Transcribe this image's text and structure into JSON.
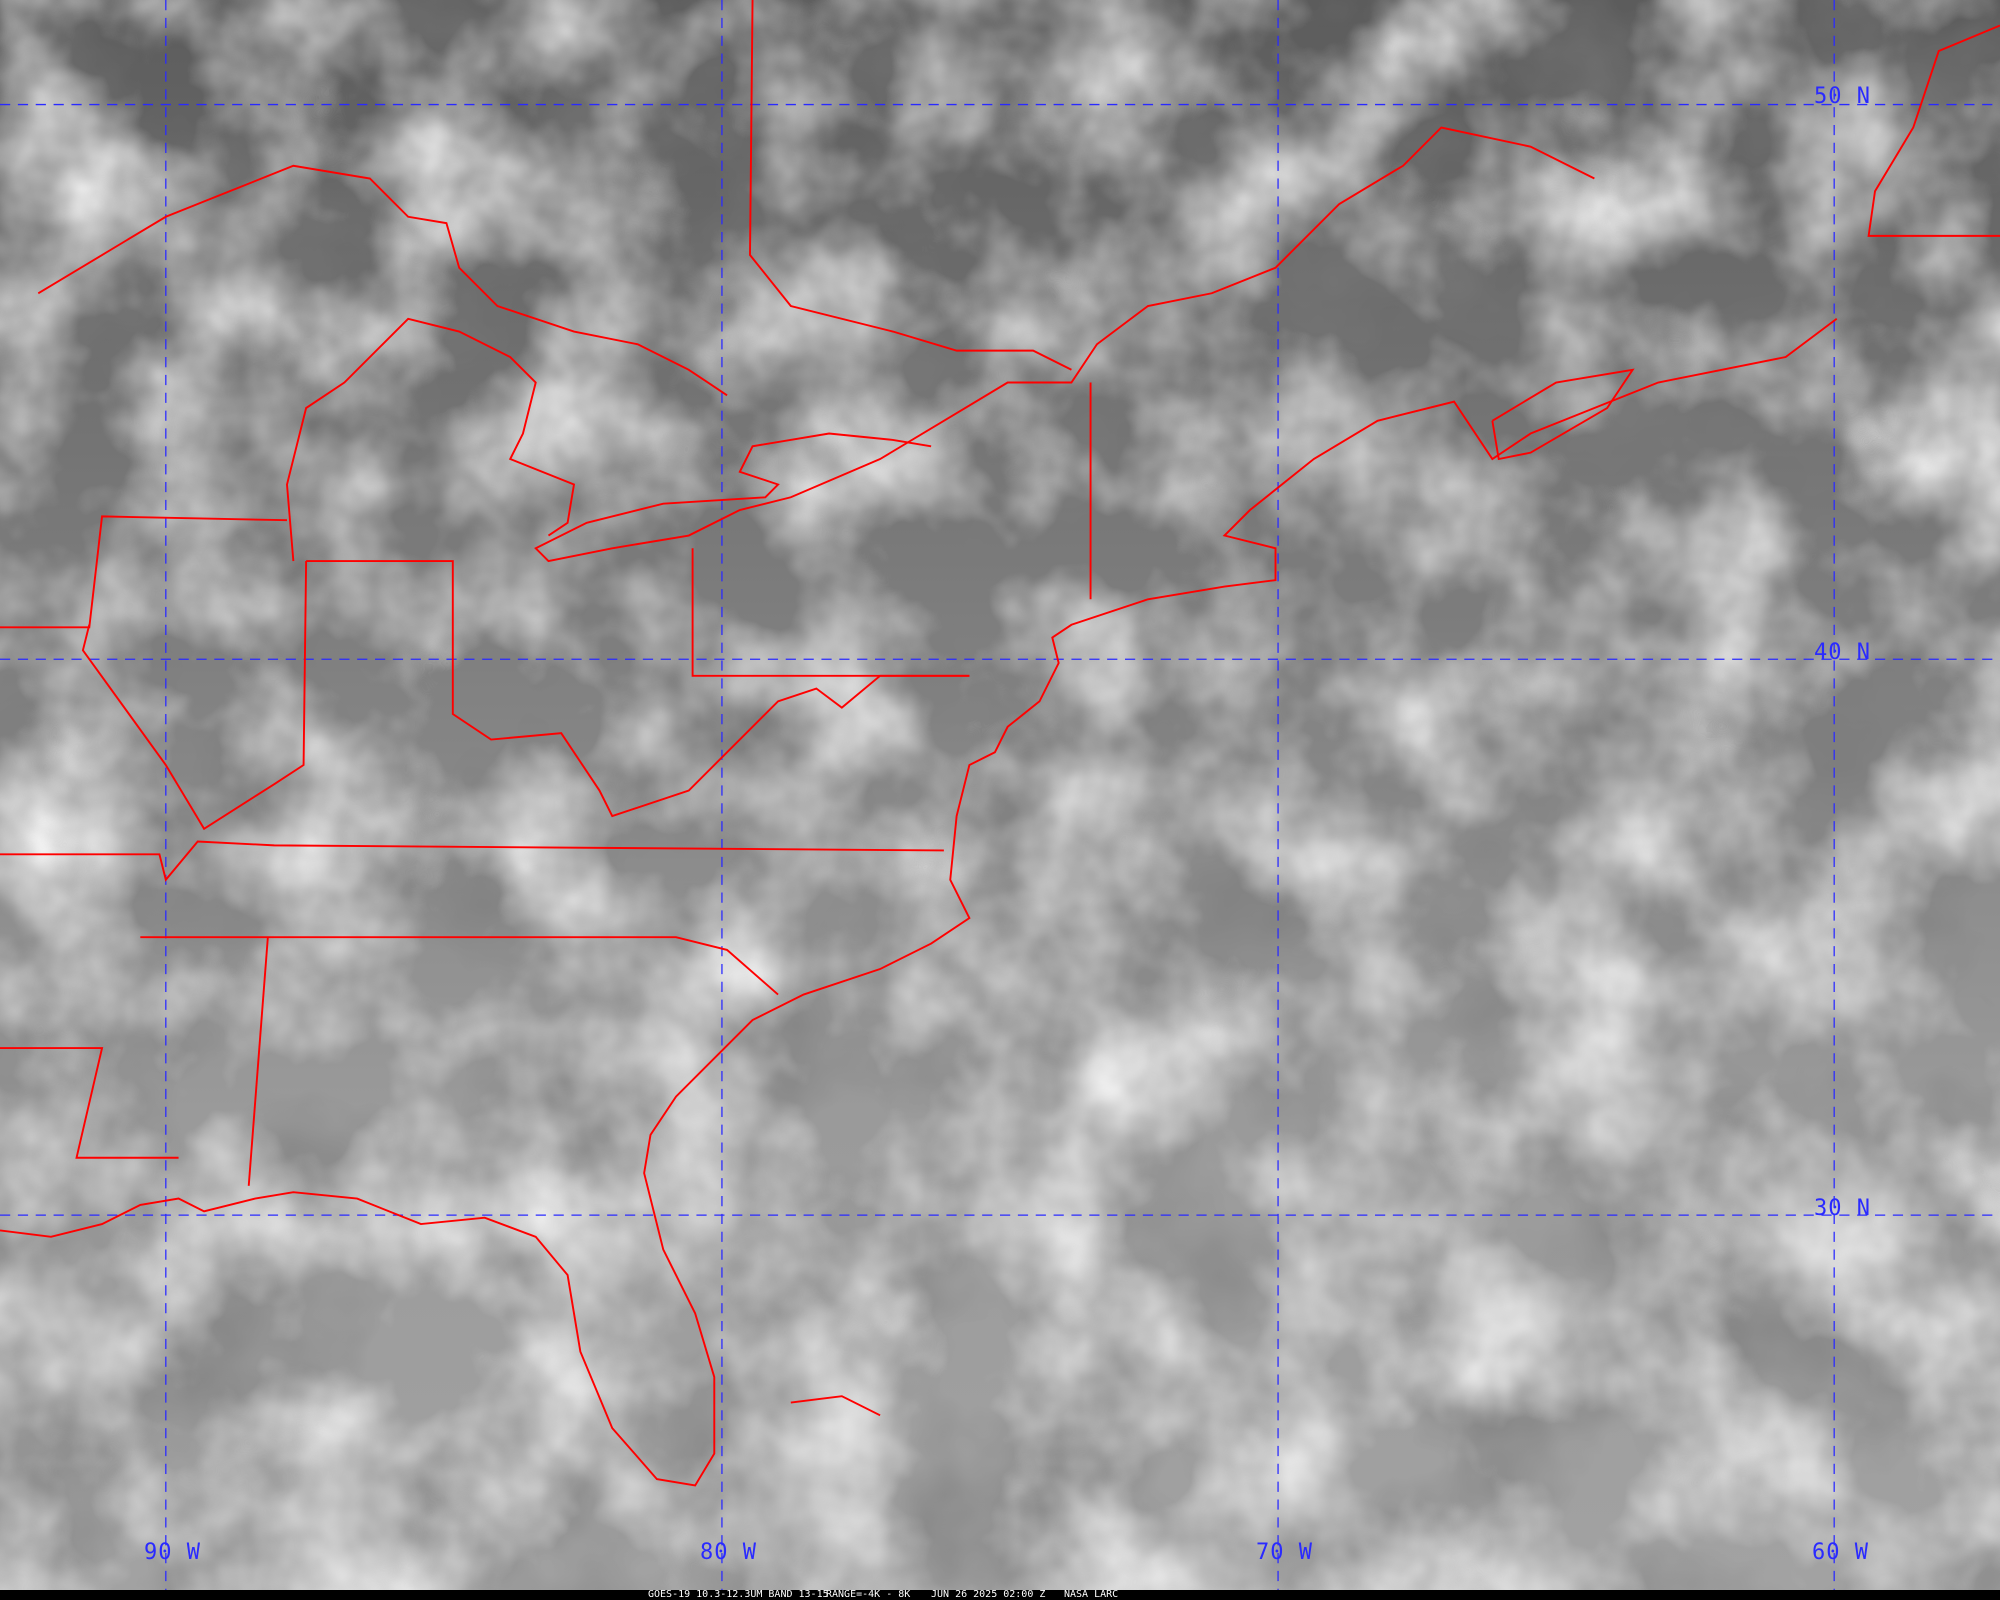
{
  "map": {
    "lat_labels": [
      "50 N",
      "40 N",
      "30 N"
    ],
    "lon_labels": [
      "90 W",
      "80 W",
      "70 W",
      "60 W"
    ],
    "grid_color": "#2a2aff",
    "border_color": "#ff0000"
  },
  "caption": {
    "product": "GOES-19 10.3-12.3UM BAND 13-15",
    "range": "RANGE=-4K - 8K",
    "datetime": "JUN 26 2025 02:00 Z",
    "source": "NASA LARC"
  }
}
